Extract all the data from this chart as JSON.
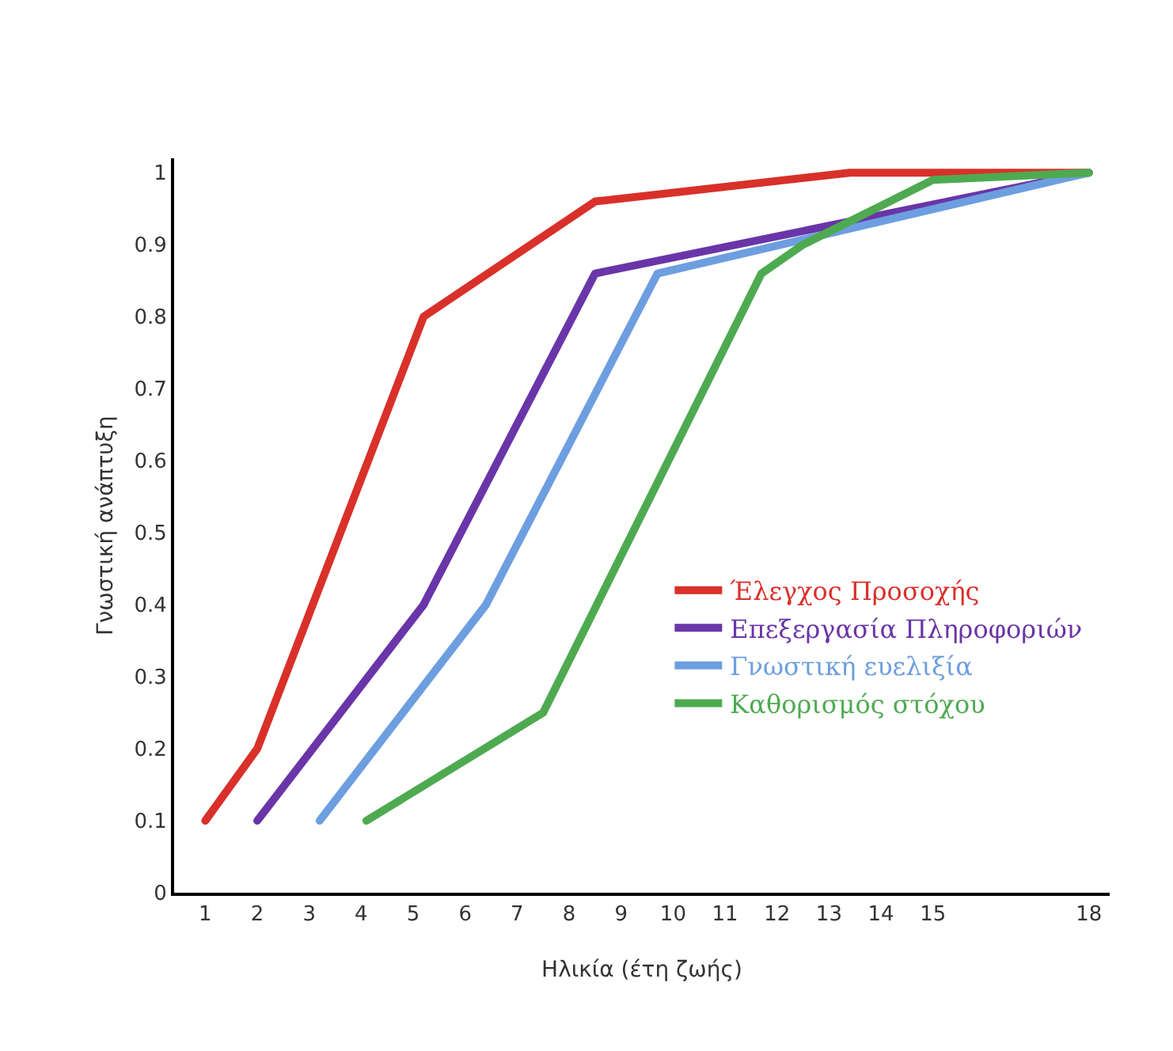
{
  "chart_data": {
    "type": "line",
    "xlabel": "Ηλικία (έτη ζωής)",
    "ylabel": "Γνωστική ανάπτυξη",
    "xlim": [
      0.4,
      18.4
    ],
    "xticks": [
      1,
      2,
      3,
      4,
      5,
      6,
      7,
      8,
      9,
      10,
      11,
      12,
      13,
      14,
      15,
      18
    ],
    "ylim": [
      0,
      1.02
    ],
    "yticks": [
      0,
      0.1,
      0.2,
      0.3,
      0.4,
      0.5,
      0.6,
      0.7,
      0.8,
      0.9,
      1
    ],
    "grid": false,
    "legend": "bottom right",
    "marker": "none",
    "line_style": "solid",
    "series": [
      {
        "name": "Έλεγχος Προσοχής",
        "color": "#d9302a",
        "x": [
          1,
          2,
          5.2,
          8.5,
          13.4,
          18
        ],
        "values": [
          0.1,
          0.2,
          0.8,
          0.96,
          1.0,
          1.0
        ]
      },
      {
        "name": "Επεξεργασία Πληροφοριών",
        "color": "#6a35a8",
        "x": [
          2,
          5.2,
          8.5,
          18
        ],
        "values": [
          0.1,
          0.4,
          0.86,
          1.0
        ]
      },
      {
        "name": "Γνωστική ευελιξία",
        "color": "#6d9ee0",
        "x": [
          3.2,
          6.4,
          9.7,
          18
        ],
        "values": [
          0.1,
          0.4,
          0.86,
          1.0
        ]
      },
      {
        "name": "Καθορισμός στόχου",
        "color": "#4eaa50",
        "x": [
          4.1,
          7.5,
          11.7,
          12.5,
          15,
          18
        ],
        "values": [
          0.1,
          0.25,
          0.86,
          0.9,
          0.99,
          1.0
        ]
      }
    ]
  }
}
